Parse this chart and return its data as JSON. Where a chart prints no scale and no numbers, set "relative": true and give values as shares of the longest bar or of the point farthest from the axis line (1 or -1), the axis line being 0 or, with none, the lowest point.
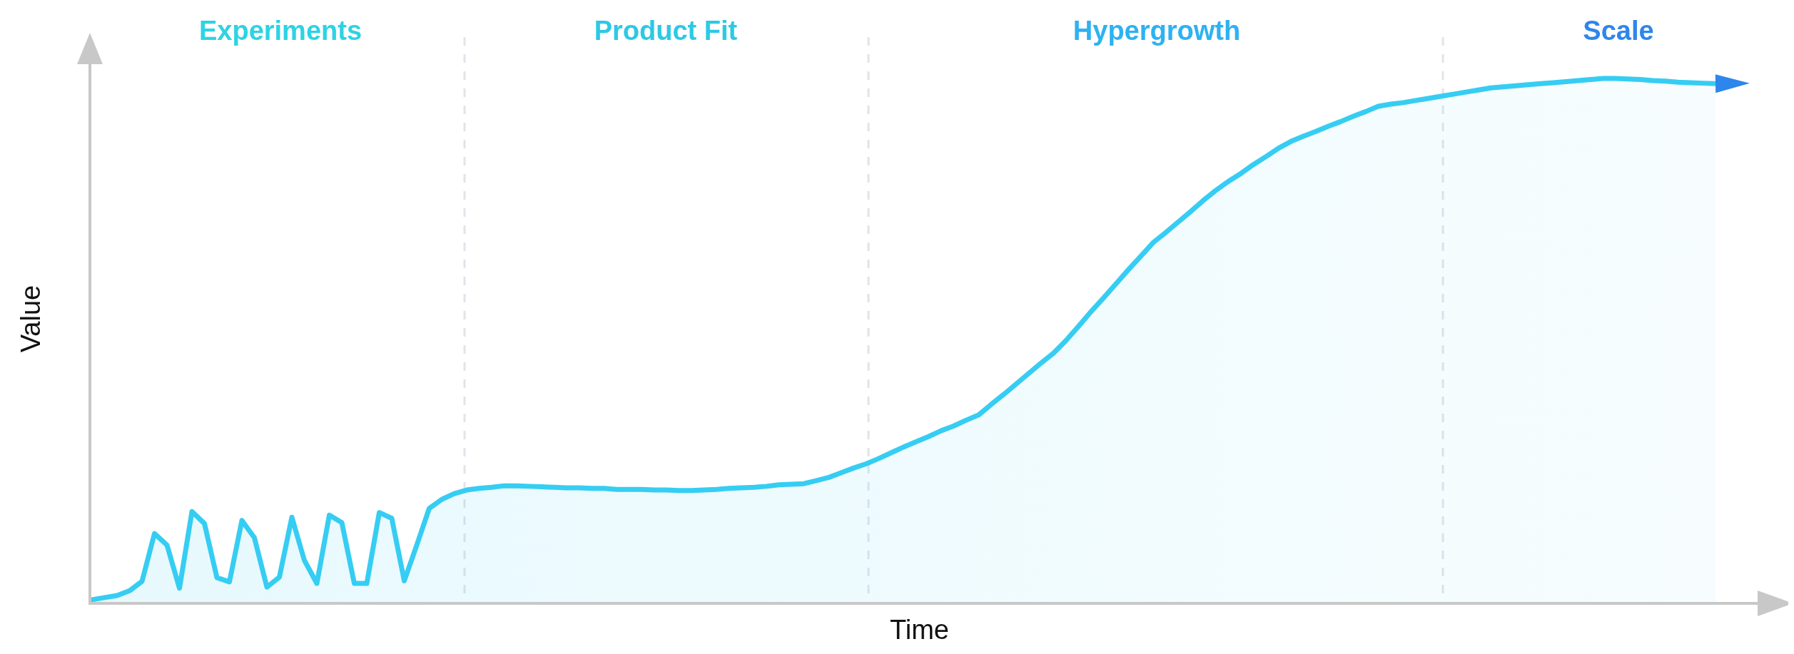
{
  "chart_data": {
    "type": "area",
    "relative": true,
    "xlabel": "Time",
    "ylabel": "Value",
    "marker": "none",
    "line_style": "solid",
    "annotations": [
      "Experiments",
      "Product Fit",
      "Hypergrowth",
      "Scale"
    ],
    "categories": [
      null,
      null,
      null,
      null,
      null,
      null,
      null,
      null,
      null,
      null,
      null,
      null,
      null,
      null,
      null,
      null,
      null,
      null,
      null,
      null,
      null,
      null,
      null,
      null,
      null,
      null,
      null,
      null,
      null,
      null,
      null,
      null,
      null,
      null,
      null,
      null,
      null,
      null,
      null,
      null,
      null,
      null,
      null,
      null,
      null,
      null,
      null,
      null,
      null,
      null,
      null,
      null,
      null,
      null,
      null,
      null,
      null,
      null,
      null,
      null,
      null,
      null,
      null,
      null,
      null,
      null,
      null,
      null,
      null,
      null,
      null,
      null,
      null,
      null,
      null,
      null,
      null,
      null,
      null,
      null,
      null,
      null,
      null,
      null,
      null,
      null,
      null,
      null,
      null,
      null,
      null,
      null,
      null,
      null,
      null,
      null,
      null,
      null,
      null,
      null,
      null,
      null,
      null,
      null,
      null,
      null,
      null,
      null,
      null,
      null,
      null,
      null,
      null,
      null,
      null,
      null,
      null,
      null,
      null,
      null,
      null,
      null,
      null,
      null,
      null,
      null,
      null,
      null,
      null,
      null,
      null
    ],
    "series": [
      {
        "color": "#36cdf3",
        "values": [
          0.007,
          0.011,
          0.015,
          0.024,
          0.042,
          0.133,
          0.111,
          0.029,
          0.175,
          0.152,
          0.049,
          0.041,
          0.158,
          0.125,
          0.031,
          0.05,
          0.164,
          0.082,
          0.038,
          0.168,
          0.154,
          0.038,
          0.038,
          0.173,
          0.162,
          0.043,
          0.111,
          0.181,
          0.198,
          0.209,
          0.216,
          0.219,
          0.221,
          0.224,
          0.224,
          0.223,
          0.222,
          0.221,
          0.22,
          0.22,
          0.219,
          0.219,
          0.217,
          0.217,
          0.217,
          0.216,
          0.216,
          0.215,
          0.215,
          0.216,
          0.217,
          0.219,
          0.22,
          0.221,
          0.223,
          0.226,
          0.227,
          0.228,
          0.234,
          0.24,
          0.249,
          0.258,
          0.266,
          0.276,
          0.287,
          0.298,
          0.308,
          0.318,
          0.329,
          0.338,
          0.349,
          0.359,
          0.379,
          0.398,
          0.418,
          0.438,
          0.458,
          0.477,
          0.501,
          0.528,
          0.556,
          0.582,
          0.609,
          0.636,
          0.662,
          0.688,
          0.707,
          0.727,
          0.747,
          0.768,
          0.787,
          0.804,
          0.819,
          0.836,
          0.851,
          0.867,
          0.88,
          0.89,
          0.899,
          0.909,
          0.918,
          0.928,
          0.937,
          0.947,
          0.951,
          0.954,
          0.958,
          0.962,
          0.966,
          0.97,
          0.974,
          0.978,
          0.982,
          0.984,
          0.986,
          0.988,
          0.99,
          0.992,
          0.994,
          0.996,
          0.998,
          1,
          1,
          0.999,
          0.998,
          0.996,
          0.995,
          0.993,
          0.992,
          0.991,
          0.99
        ]
      }
    ]
  }
}
